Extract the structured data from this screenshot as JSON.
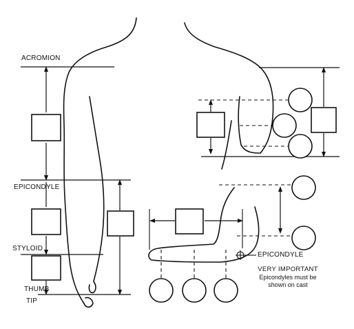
{
  "labels": {
    "acromion": "ACROMION",
    "epicondyle_left": "EPICONDYLE",
    "styloid": "STYLOID",
    "thumb": "THUMB",
    "tip": "TIP",
    "epicondyle_right": "EPICONDYLE"
  },
  "note": {
    "heading": "VERY IMPORTANT",
    "line1": "Epicondyles must be",
    "line2": "shown on cast"
  }
}
